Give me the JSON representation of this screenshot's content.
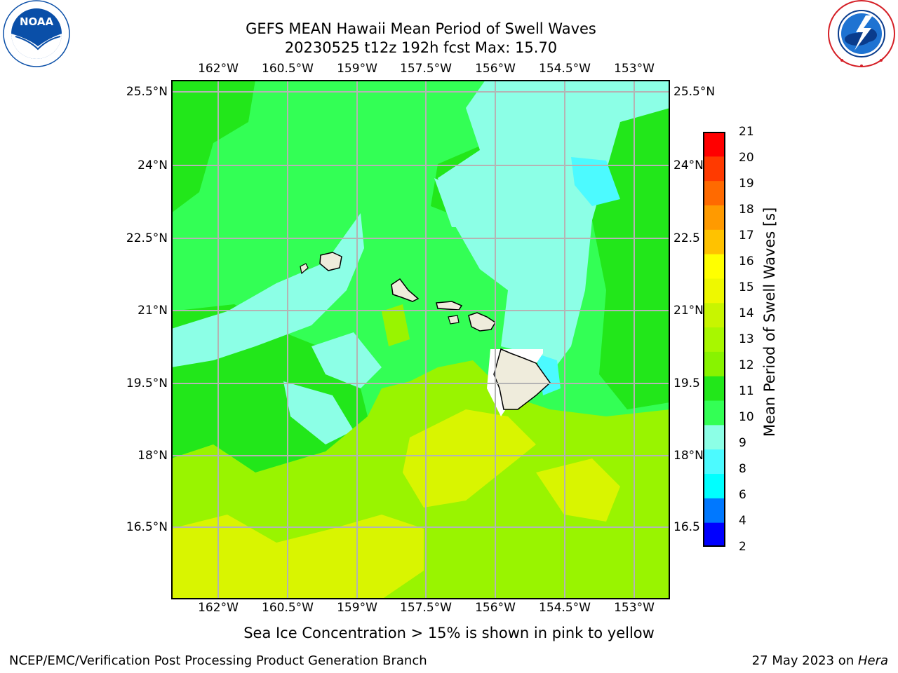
{
  "header": {
    "title_line1": "GEFS MEAN Hawaii Mean Period of Swell Waves",
    "title_line2": "20230525 t12z 192h fcst   Max: 15.70"
  },
  "logos": {
    "noaa": {
      "text": "NOAA",
      "ring_text": "NATIONAL OCEANIC AND ATMOSPHERIC ADMINISTRATION · U.S. DEPARTMENT OF COMMERCE",
      "color": "#0a4fa8"
    },
    "nws": {
      "ring_text": "NATIONAL WEATHER SERVICE",
      "color": "#d51f26"
    }
  },
  "map": {
    "lon_ticks": [
      "162°W",
      "160.5°W",
      "159°W",
      "157.5°W",
      "156°W",
      "154.5°W",
      "153°W"
    ],
    "lat_ticks_left": [
      "25.5°N",
      "24°N",
      "22.5°N",
      "21°N",
      "19.5°N",
      "18°N",
      "16.5°N"
    ],
    "lat_ticks_right": [
      "25.5°N",
      "24°N",
      "22.5",
      "21°N",
      "19.5",
      "18°N",
      "16.5"
    ],
    "field_colors": {
      "cyan_light": "#8cffe6",
      "cyan": "#4cfaff",
      "green_light": "#33ff55",
      "green": "#22e71a",
      "yellow_green": "#99f400",
      "yellow": "#d9f500",
      "land": "#efecdc"
    }
  },
  "colorbar": {
    "label": "Mean Period of Swell Waves [s]",
    "levels": [
      "2",
      "4",
      "6",
      "8",
      "9",
      "10",
      "11",
      "12",
      "13",
      "14",
      "15",
      "16",
      "17",
      "18",
      "19",
      "20",
      "21"
    ],
    "colors": [
      "#0000ff",
      "#0078ff",
      "#00ffff",
      "#4cfaff",
      "#8cffe6",
      "#33ff55",
      "#22e71a",
      "#88f300",
      "#a8f700",
      "#c8f500",
      "#eef800",
      "#ffff00",
      "#ffc200",
      "#ff9a00",
      "#ff6a00",
      "#ff3a00",
      "#ff0000"
    ]
  },
  "footer": {
    "note": "Sea Ice Concentration > 15% is shown in pink to yellow",
    "credit": "NCEP/EMC/Verification Post Processing Product Generation Branch",
    "date_prefix": "27 May 2023 on ",
    "host": "Hera"
  }
}
